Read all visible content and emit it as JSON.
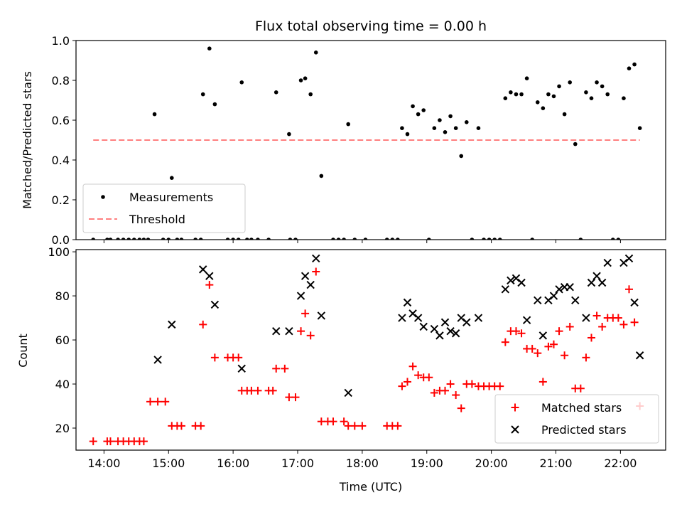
{
  "chart_data": [
    {
      "type": "scatter",
      "title": "Flux total observing time = 0.00 h",
      "xlabel": "",
      "ylabel": "Matched/Predicted stars",
      "xlim": [
        "13:34",
        "22:42"
      ],
      "ylim": [
        0,
        1
      ],
      "yticks": [
        "0.0",
        "0.2",
        "0.4",
        "0.6",
        "0.8",
        "1.0"
      ],
      "xticks": [
        "14:00",
        "15:00",
        "16:00",
        "17:00",
        "18:00",
        "19:00",
        "20:00",
        "21:00",
        "22:00"
      ],
      "show_xtick_labels": false,
      "grid": false,
      "legend_position": "lower-left",
      "legend": [
        "Measurements",
        "Threshold"
      ],
      "series": [
        {
          "name": "Measurements",
          "marker": "dot",
          "color": "#000000",
          "points": [
            [
              "13:50",
              0
            ],
            [
              "14:03",
              0
            ],
            [
              "14:06",
              0
            ],
            [
              "14:13",
              0
            ],
            [
              "14:18",
              0
            ],
            [
              "14:23",
              0
            ],
            [
              "14:28",
              0
            ],
            [
              "14:33",
              0
            ],
            [
              "14:37",
              0
            ],
            [
              "14:41",
              0
            ],
            [
              "14:47",
              0.63
            ],
            [
              "14:55",
              0
            ],
            [
              "15:00",
              0
            ],
            [
              "15:03",
              0.31
            ],
            [
              "15:08",
              0
            ],
            [
              "15:12",
              0
            ],
            [
              "15:25",
              0
            ],
            [
              "15:30",
              0
            ],
            [
              "15:32",
              0.73
            ],
            [
              "15:38",
              0.96
            ],
            [
              "15:43",
              0.68
            ],
            [
              "15:55",
              0
            ],
            [
              "16:00",
              0
            ],
            [
              "16:05",
              0
            ],
            [
              "16:08",
              0.79
            ],
            [
              "16:13",
              0
            ],
            [
              "16:17",
              0
            ],
            [
              "16:23",
              0
            ],
            [
              "16:33",
              0
            ],
            [
              "16:40",
              0.74
            ],
            [
              "16:52",
              0.53
            ],
            [
              "16:53",
              0
            ],
            [
              "16:58",
              0
            ],
            [
              "17:03",
              0.8
            ],
            [
              "17:07",
              0.81
            ],
            [
              "17:12",
              0.73
            ],
            [
              "17:17",
              0.94
            ],
            [
              "17:22",
              0.32
            ],
            [
              "17:33",
              0
            ],
            [
              "17:38",
              0
            ],
            [
              "17:43",
              0
            ],
            [
              "17:47",
              0.58
            ],
            [
              "17:53",
              0
            ],
            [
              "18:03",
              0
            ],
            [
              "18:23",
              0
            ],
            [
              "18:28",
              0
            ],
            [
              "18:33",
              0
            ],
            [
              "18:37",
              0.56
            ],
            [
              "18:42",
              0.53
            ],
            [
              "18:47",
              0.67
            ],
            [
              "18:52",
              0.63
            ],
            [
              "18:57",
              0.65
            ],
            [
              "19:02",
              0
            ],
            [
              "19:07",
              0.56
            ],
            [
              "19:12",
              0.6
            ],
            [
              "19:17",
              0.54
            ],
            [
              "19:22",
              0.62
            ],
            [
              "19:27",
              0.56
            ],
            [
              "19:32",
              0.42
            ],
            [
              "19:37",
              0.59
            ],
            [
              "19:42",
              0
            ],
            [
              "19:48",
              0.56
            ],
            [
              "19:53",
              0
            ],
            [
              "19:58",
              0
            ],
            [
              "20:03",
              0
            ],
            [
              "20:08",
              0
            ],
            [
              "20:13",
              0.71
            ],
            [
              "20:18",
              0.74
            ],
            [
              "20:23",
              0.73
            ],
            [
              "20:28",
              0.73
            ],
            [
              "20:33",
              0.81
            ],
            [
              "20:38",
              0
            ],
            [
              "20:43",
              0.69
            ],
            [
              "20:48",
              0.66
            ],
            [
              "20:53",
              0.73
            ],
            [
              "20:58",
              0.72
            ],
            [
              "21:03",
              0.77
            ],
            [
              "21:08",
              0.63
            ],
            [
              "21:13",
              0.79
            ],
            [
              "21:18",
              0.48
            ],
            [
              "21:23",
              0
            ],
            [
              "21:28",
              0.74
            ],
            [
              "21:33",
              0.71
            ],
            [
              "21:38",
              0.79
            ],
            [
              "21:43",
              0.77
            ],
            [
              "21:48",
              0.73
            ],
            [
              "21:53",
              0
            ],
            [
              "21:58",
              0
            ],
            [
              "22:03",
              0.71
            ],
            [
              "22:08",
              0.86
            ],
            [
              "22:13",
              0.88
            ],
            [
              "22:18",
              0.56
            ]
          ]
        },
        {
          "name": "Threshold",
          "line": "dashed",
          "color": "#ff7f7f",
          "points": [
            [
              "13:50",
              0.5
            ],
            [
              "22:18",
              0.5
            ]
          ]
        }
      ]
    },
    {
      "type": "scatter",
      "title": "",
      "xlabel": "Time (UTC)",
      "ylabel": "Count",
      "xlim": [
        "13:34",
        "22:42"
      ],
      "ylim": [
        10,
        101
      ],
      "yticks": [
        "20",
        "40",
        "60",
        "80",
        "100"
      ],
      "xticks": [
        "14:00",
        "15:00",
        "16:00",
        "17:00",
        "18:00",
        "19:00",
        "20:00",
        "21:00",
        "22:00"
      ],
      "show_xtick_labels": true,
      "grid": false,
      "legend_position": "lower-right",
      "legend": [
        "Matched stars",
        "Predicted stars"
      ],
      "series": [
        {
          "name": "Matched stars",
          "marker": "plus",
          "color": "#ff0000",
          "points": [
            [
              "13:50",
              14
            ],
            [
              "14:03",
              14
            ],
            [
              "14:06",
              14
            ],
            [
              "14:13",
              14
            ],
            [
              "14:18",
              14
            ],
            [
              "14:23",
              14
            ],
            [
              "14:28",
              14
            ],
            [
              "14:33",
              14
            ],
            [
              "14:37",
              14
            ],
            [
              "14:43",
              32
            ],
            [
              "14:50",
              32
            ],
            [
              "14:57",
              32
            ],
            [
              "15:03",
              21
            ],
            [
              "15:08",
              21
            ],
            [
              "15:12",
              21
            ],
            [
              "15:25",
              21
            ],
            [
              "15:30",
              21
            ],
            [
              "15:32",
              67
            ],
            [
              "15:38",
              85
            ],
            [
              "15:43",
              52
            ],
            [
              "15:55",
              52
            ],
            [
              "16:00",
              52
            ],
            [
              "16:05",
              52
            ],
            [
              "16:08",
              37
            ],
            [
              "16:13",
              37
            ],
            [
              "16:17",
              37
            ],
            [
              "16:23",
              37
            ],
            [
              "16:33",
              37
            ],
            [
              "16:37",
              37
            ],
            [
              "16:40",
              47
            ],
            [
              "16:48",
              47
            ],
            [
              "16:52",
              34
            ],
            [
              "16:58",
              34
            ],
            [
              "17:03",
              64
            ],
            [
              "17:07",
              72
            ],
            [
              "17:12",
              62
            ],
            [
              "17:17",
              91
            ],
            [
              "17:22",
              23
            ],
            [
              "17:28",
              23
            ],
            [
              "17:33",
              23
            ],
            [
              "17:43",
              23
            ],
            [
              "17:47",
              21
            ],
            [
              "17:53",
              21
            ],
            [
              "18:00",
              21
            ],
            [
              "18:23",
              21
            ],
            [
              "18:28",
              21
            ],
            [
              "18:33",
              21
            ],
            [
              "18:37",
              39
            ],
            [
              "18:42",
              41
            ],
            [
              "18:47",
              48
            ],
            [
              "18:52",
              44
            ],
            [
              "18:57",
              43
            ],
            [
              "19:02",
              43
            ],
            [
              "19:07",
              36
            ],
            [
              "19:12",
              37
            ],
            [
              "19:17",
              37
            ],
            [
              "19:22",
              40
            ],
            [
              "19:27",
              35
            ],
            [
              "19:32",
              29
            ],
            [
              "19:37",
              40
            ],
            [
              "19:42",
              40
            ],
            [
              "19:48",
              39
            ],
            [
              "19:53",
              39
            ],
            [
              "19:58",
              39
            ],
            [
              "20:03",
              39
            ],
            [
              "20:08",
              39
            ],
            [
              "20:13",
              59
            ],
            [
              "20:18",
              64
            ],
            [
              "20:23",
              64
            ],
            [
              "20:28",
              63
            ],
            [
              "20:33",
              56
            ],
            [
              "20:38",
              56
            ],
            [
              "20:43",
              54
            ],
            [
              "20:48",
              41
            ],
            [
              "20:53",
              57
            ],
            [
              "20:58",
              58
            ],
            [
              "21:03",
              64
            ],
            [
              "21:08",
              53
            ],
            [
              "21:13",
              66
            ],
            [
              "21:18",
              38
            ],
            [
              "21:23",
              38
            ],
            [
              "21:28",
              52
            ],
            [
              "21:33",
              61
            ],
            [
              "21:38",
              71
            ],
            [
              "21:43",
              66
            ],
            [
              "21:48",
              70
            ],
            [
              "21:53",
              70
            ],
            [
              "21:58",
              70
            ],
            [
              "22:03",
              67
            ],
            [
              "22:08",
              83
            ],
            [
              "22:13",
              68
            ],
            [
              "22:18",
              30
            ]
          ]
        },
        {
          "name": "Predicted stars",
          "marker": "x",
          "color": "#000000",
          "points": [
            [
              "14:50",
              51
            ],
            [
              "15:03",
              67
            ],
            [
              "15:32",
              92
            ],
            [
              "15:38",
              89
            ],
            [
              "15:43",
              76
            ],
            [
              "16:08",
              47
            ],
            [
              "16:40",
              64
            ],
            [
              "16:52",
              64
            ],
            [
              "17:03",
              80
            ],
            [
              "17:07",
              89
            ],
            [
              "17:12",
              85
            ],
            [
              "17:17",
              97
            ],
            [
              "17:22",
              71
            ],
            [
              "17:47",
              36
            ],
            [
              "18:37",
              70
            ],
            [
              "18:42",
              77
            ],
            [
              "18:47",
              72
            ],
            [
              "18:52",
              70
            ],
            [
              "18:57",
              66
            ],
            [
              "19:07",
              65
            ],
            [
              "19:12",
              62
            ],
            [
              "19:17",
              68
            ],
            [
              "19:22",
              64
            ],
            [
              "19:27",
              63
            ],
            [
              "19:32",
              70
            ],
            [
              "19:37",
              68
            ],
            [
              "19:48",
              70
            ],
            [
              "20:13",
              83
            ],
            [
              "20:18",
              87
            ],
            [
              "20:23",
              88
            ],
            [
              "20:28",
              86
            ],
            [
              "20:33",
              69
            ],
            [
              "20:43",
              78
            ],
            [
              "20:48",
              62
            ],
            [
              "20:53",
              78
            ],
            [
              "20:58",
              80
            ],
            [
              "21:03",
              83
            ],
            [
              "21:08",
              84
            ],
            [
              "21:13",
              84
            ],
            [
              "21:18",
              78
            ],
            [
              "21:28",
              70
            ],
            [
              "21:33",
              86
            ],
            [
              "21:38",
              89
            ],
            [
              "21:43",
              86
            ],
            [
              "21:48",
              95
            ],
            [
              "22:03",
              95
            ],
            [
              "22:08",
              97
            ],
            [
              "22:13",
              77
            ],
            [
              "22:18",
              53
            ]
          ]
        }
      ]
    }
  ]
}
